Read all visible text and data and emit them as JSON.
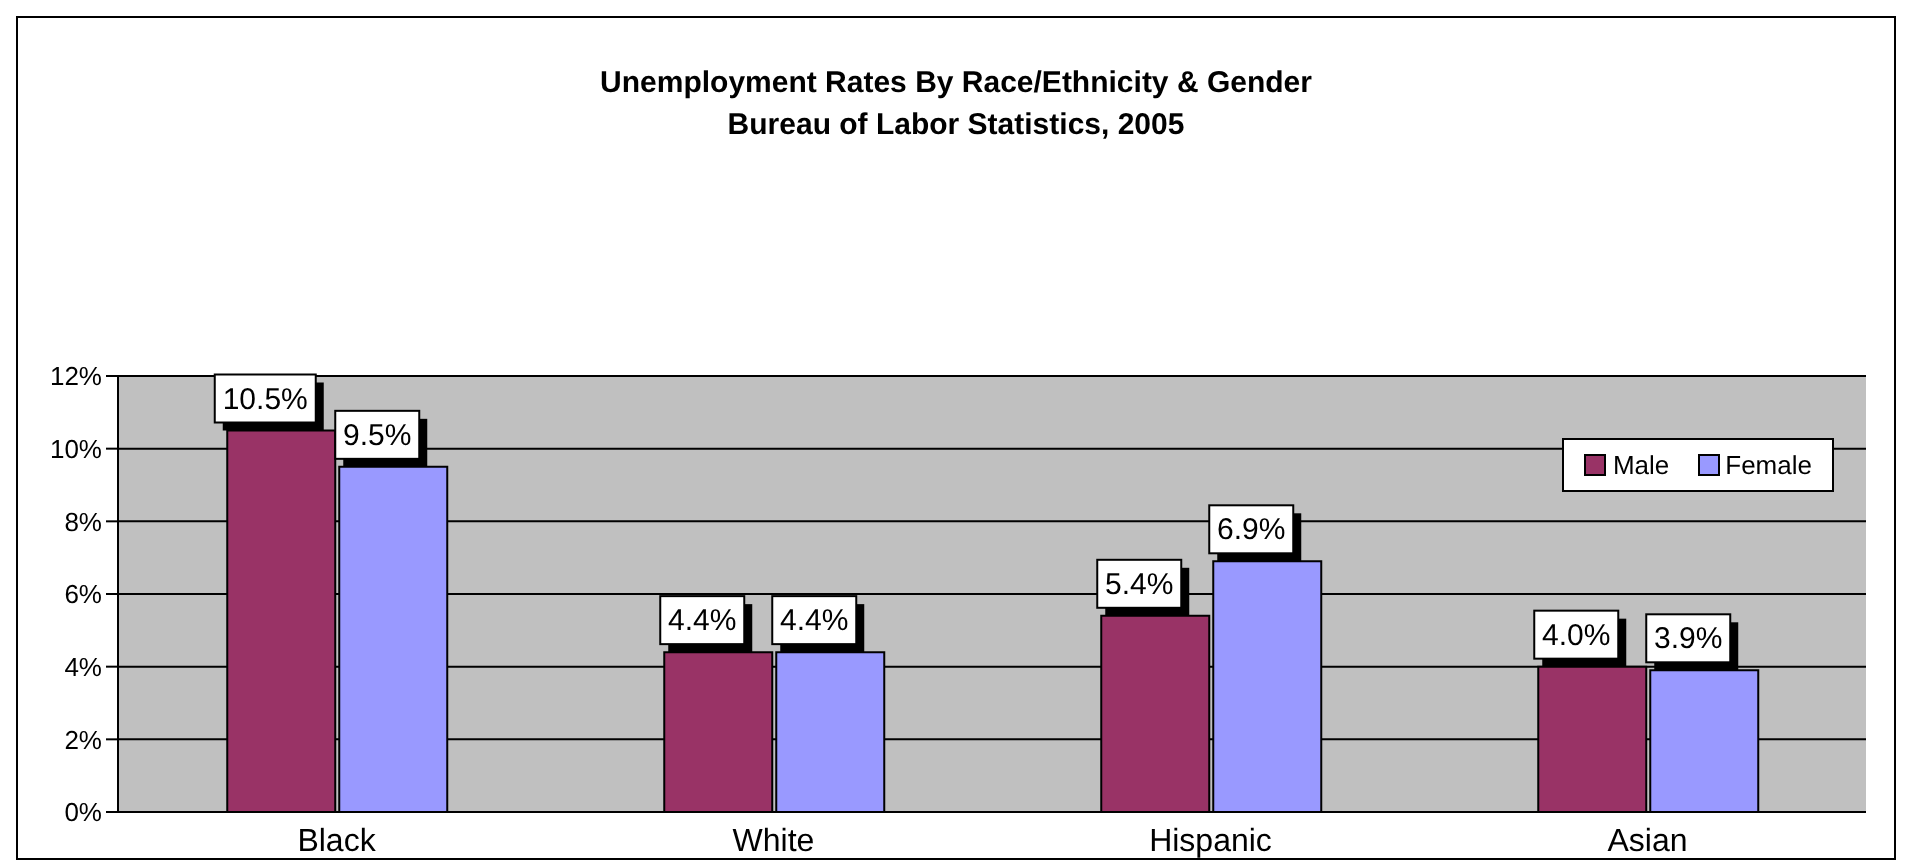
{
  "chart_data": {
    "type": "bar",
    "title": "Unemployment Rates By Race/Ethnicity & Gender",
    "subtitle": "Bureau of Labor Statistics, 2005",
    "categories": [
      "Black",
      "White",
      "Hispanic",
      "Asian"
    ],
    "series": [
      {
        "name": "Male",
        "color": "#993366",
        "values": [
          10.5,
          4.4,
          5.4,
          4.0
        ],
        "value_labels": [
          "10.5%",
          "4.4%",
          "5.4%",
          "4.0%"
        ]
      },
      {
        "name": "Female",
        "color": "#9999ff",
        "values": [
          9.5,
          4.4,
          6.9,
          3.9
        ],
        "value_labels": [
          "9.5%",
          "4.4%",
          "6.9%",
          "3.9%"
        ]
      }
    ],
    "ylim": [
      0,
      12
    ],
    "yticks": [
      {
        "value": 0,
        "label": "0%"
      },
      {
        "value": 2,
        "label": "2%"
      },
      {
        "value": 4,
        "label": "4%"
      },
      {
        "value": 6,
        "label": "6%"
      },
      {
        "value": 8,
        "label": "8%"
      },
      {
        "value": 10,
        "label": "10%"
      },
      {
        "value": 12,
        "label": "12%"
      }
    ],
    "grid": "y",
    "legend": "top right"
  }
}
